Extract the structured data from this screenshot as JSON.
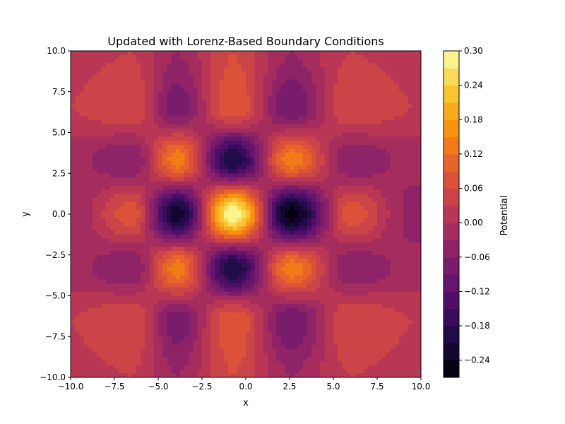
{
  "chart_data": {
    "type": "heatmap",
    "subtype": "filled-contour",
    "title": "Updated with Lorenz-Based Boundary Conditions",
    "xlabel": "x",
    "ylabel": "y",
    "xlim": [
      -10,
      10
    ],
    "ylim": [
      -10,
      10
    ],
    "x_ticks": [
      -10,
      -7.5,
      -5,
      -2.5,
      0,
      2.5,
      5,
      7.5,
      10
    ],
    "y_ticks": [
      -10,
      -7.5,
      -5,
      -2.5,
      0,
      2.5,
      5,
      7.5,
      10
    ],
    "x_tick_labels": [
      "−10.0",
      "−7.5",
      "−5.0",
      "−2.5",
      "0.0",
      "2.5",
      "5.0",
      "7.5",
      "10.0"
    ],
    "y_tick_labels": [
      "−10.0",
      "−7.5",
      "−5.0",
      "−2.5",
      "0.0",
      "2.5",
      "5.0",
      "7.5",
      "10.0"
    ],
    "grid": false,
    "colormap": "inferno",
    "colorbar": {
      "label": "Potential",
      "range": [
        -0.27,
        0.3
      ],
      "ticks": [
        -0.24,
        -0.18,
        -0.12,
        -0.06,
        0.0,
        0.06,
        0.12,
        0.18,
        0.24,
        0.3
      ],
      "tick_labels": [
        "−0.24",
        "−0.18",
        "−0.12",
        "−0.06",
        "0.00",
        "0.06",
        "0.12",
        "0.18",
        "0.24",
        "0.30"
      ]
    },
    "field": {
      "grid_x": [
        -10,
        -6.5,
        -3.9,
        -0.7,
        2.6,
        6.0,
        9.5
      ],
      "grid_y": [
        -10,
        -6.5,
        -3.3,
        0.0,
        3.3,
        6.5,
        10
      ],
      "values": [
        [
          0.02,
          0.03,
          -0.03,
          0.06,
          -0.03,
          0.03,
          0.02
        ],
        [
          0.03,
          0.06,
          -0.08,
          0.09,
          -0.09,
          0.06,
          0.03
        ],
        [
          -0.02,
          -0.06,
          0.14,
          -0.21,
          0.14,
          -0.06,
          -0.02
        ],
        [
          -0.03,
          0.08,
          -0.23,
          0.3,
          -0.26,
          0.08,
          -0.04
        ],
        [
          -0.02,
          -0.06,
          0.14,
          -0.21,
          0.14,
          -0.06,
          -0.02
        ],
        [
          0.03,
          0.06,
          -0.08,
          0.09,
          -0.09,
          0.06,
          0.03
        ],
        [
          0.02,
          0.03,
          -0.03,
          0.06,
          -0.03,
          0.03,
          0.02
        ]
      ]
    }
  }
}
